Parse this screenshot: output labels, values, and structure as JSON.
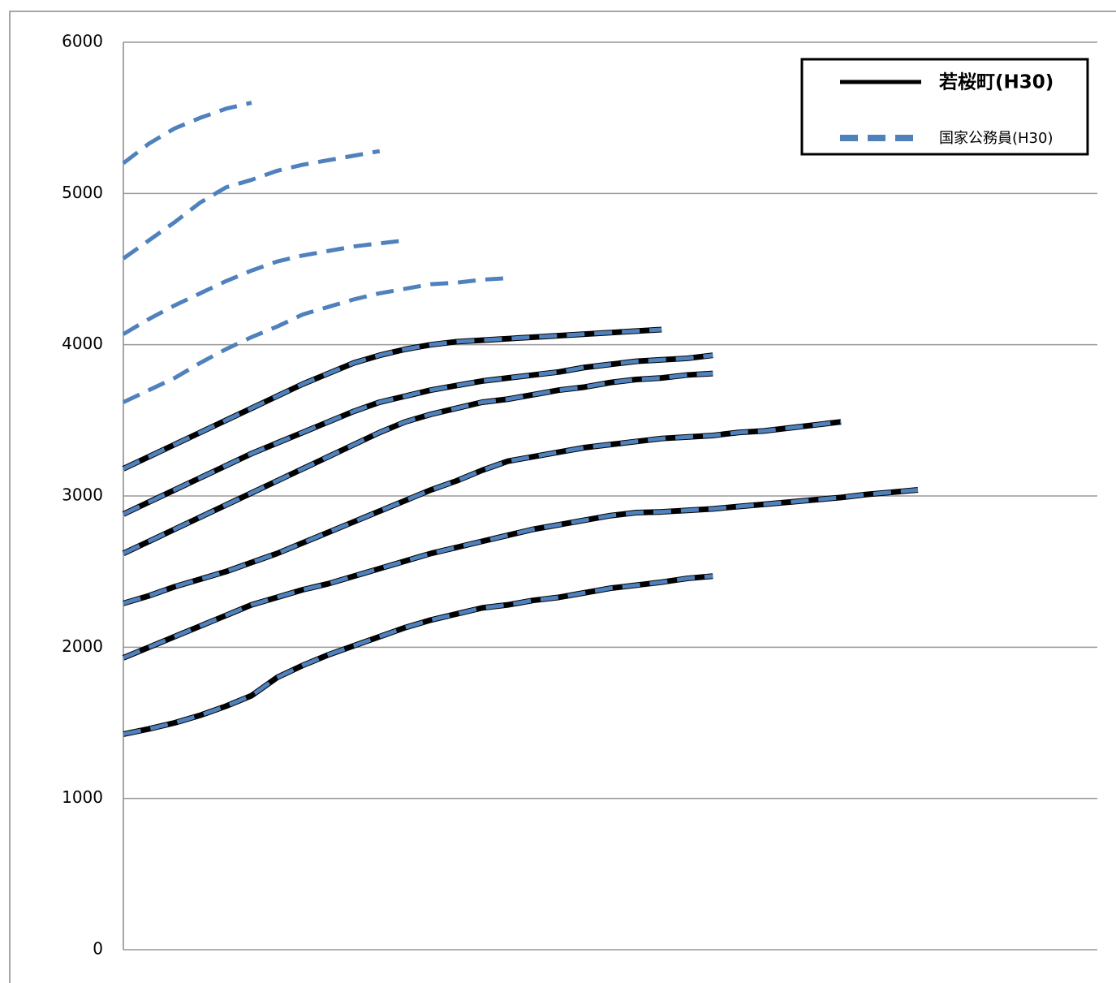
{
  "chart_data": {
    "type": "line",
    "ylim": [
      0,
      6000
    ],
    "yticks": [
      0,
      1000,
      2000,
      3000,
      4000,
      5000,
      6000
    ],
    "xlim": [
      0,
      38
    ],
    "grid": true,
    "legend": "top-right",
    "series": [
      {
        "name": "若桜町(H30)",
        "color": "#000000",
        "dashed": false,
        "lines": [
          [
            1425,
            1460,
            1500,
            1550,
            1610,
            1680,
            1800,
            1880,
            1950,
            2010,
            2070,
            2130,
            2180,
            2220,
            2260,
            2280,
            2310,
            2330,
            2360,
            2390,
            2410,
            2430,
            2455,
            2470
          ],
          [
            1930,
            2000,
            2070,
            2140,
            2210,
            2280,
            2330,
            2380,
            2420,
            2470,
            2520,
            2570,
            2620,
            2660,
            2700,
            2740,
            2780,
            2810,
            2840,
            2870,
            2890,
            2895,
            2905,
            2915,
            2930,
            2945,
            2960,
            2975,
            2990,
            3010,
            3025,
            3040
          ],
          [
            2290,
            2340,
            2400,
            2450,
            2500,
            2560,
            2620,
            2690,
            2760,
            2830,
            2900,
            2970,
            3040,
            3100,
            3170,
            3230,
            3260,
            3290,
            3320,
            3340,
            3360,
            3380,
            3390,
            3400,
            3420,
            3430,
            3450,
            3470,
            3490
          ],
          [
            2620,
            2700,
            2780,
            2860,
            2940,
            3020,
            3100,
            3180,
            3260,
            3340,
            3420,
            3490,
            3540,
            3580,
            3620,
            3640,
            3670,
            3700,
            3720,
            3750,
            3770,
            3780,
            3800,
            3810
          ],
          [
            2880,
            2960,
            3040,
            3120,
            3200,
            3280,
            3350,
            3420,
            3490,
            3560,
            3620,
            3660,
            3700,
            3730,
            3760,
            3780,
            3800,
            3820,
            3850,
            3870,
            3890,
            3900,
            3910,
            3930
          ],
          [
            3180,
            3260,
            3340,
            3420,
            3500,
            3580,
            3660,
            3740,
            3810,
            3880,
            3930,
            3970,
            4000,
            4020,
            4030,
            4040,
            4050,
            4060,
            4070,
            4080,
            4090,
            4100
          ]
        ]
      },
      {
        "name": "国家公務員(H30)",
        "color": "#4f81bd",
        "dashed": true,
        "lines": [
          [
            1425,
            1460,
            1500,
            1550,
            1610,
            1680,
            1800,
            1880,
            1950,
            2010,
            2070,
            2130,
            2180,
            2220,
            2260,
            2280,
            2310,
            2330,
            2360,
            2390,
            2410,
            2430,
            2455,
            2470
          ],
          [
            1930,
            2000,
            2070,
            2140,
            2210,
            2280,
            2330,
            2380,
            2420,
            2470,
            2520,
            2570,
            2620,
            2660,
            2700,
            2740,
            2780,
            2810,
            2840,
            2870,
            2890,
            2895,
            2905,
            2915,
            2930,
            2945,
            2960,
            2975,
            2990,
            3010,
            3025,
            3040
          ],
          [
            2290,
            2340,
            2400,
            2450,
            2500,
            2560,
            2620,
            2690,
            2760,
            2830,
            2900,
            2970,
            3040,
            3100,
            3170,
            3230,
            3260,
            3290,
            3320,
            3340,
            3360,
            3380,
            3390,
            3400,
            3420,
            3430,
            3450,
            3470,
            3490
          ],
          [
            2620,
            2700,
            2780,
            2860,
            2940,
            3020,
            3100,
            3180,
            3260,
            3340,
            3420,
            3490,
            3540,
            3580,
            3620,
            3640,
            3670,
            3700,
            3720,
            3750,
            3770,
            3780,
            3800,
            3810
          ],
          [
            2880,
            2960,
            3040,
            3120,
            3200,
            3280,
            3350,
            3420,
            3490,
            3560,
            3620,
            3660,
            3700,
            3730,
            3760,
            3780,
            3800,
            3820,
            3850,
            3870,
            3890,
            3900,
            3910,
            3930
          ],
          [
            3180,
            3260,
            3340,
            3420,
            3500,
            3580,
            3660,
            3740,
            3810,
            3880,
            3930,
            3970,
            4000,
            4020,
            4030,
            4040,
            4050,
            4060,
            4070,
            4080,
            4090,
            4100
          ],
          [
            3620,
            3700,
            3780,
            3880,
            3970,
            4050,
            4120,
            4200,
            4250,
            4300,
            4340,
            4370,
            4400,
            4410,
            4430,
            4440
          ],
          [
            4070,
            4170,
            4260,
            4340,
            4420,
            4490,
            4550,
            4590,
            4620,
            4650,
            4670,
            4690
          ],
          [
            4570,
            4690,
            4810,
            4940,
            5040,
            5090,
            5150,
            5190,
            5220,
            5250,
            5280
          ],
          [
            5200,
            5330,
            5430,
            5500,
            5560,
            5600
          ]
        ]
      }
    ]
  }
}
